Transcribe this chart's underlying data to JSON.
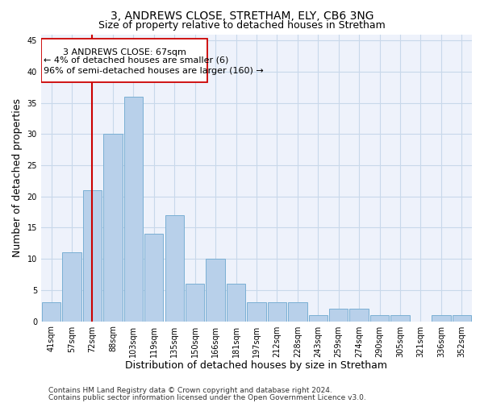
{
  "title_line1": "3, ANDREWS CLOSE, STRETHAM, ELY, CB6 3NG",
  "title_line2": "Size of property relative to detached houses in Stretham",
  "xlabel": "Distribution of detached houses by size in Stretham",
  "ylabel": "Number of detached properties",
  "categories": [
    "41sqm",
    "57sqm",
    "72sqm",
    "88sqm",
    "103sqm",
    "119sqm",
    "135sqm",
    "150sqm",
    "166sqm",
    "181sqm",
    "197sqm",
    "212sqm",
    "228sqm",
    "243sqm",
    "259sqm",
    "274sqm",
    "290sqm",
    "305sqm",
    "321sqm",
    "336sqm",
    "352sqm"
  ],
  "values": [
    3,
    11,
    21,
    30,
    36,
    14,
    17,
    6,
    10,
    6,
    3,
    3,
    3,
    1,
    2,
    2,
    1,
    1,
    0,
    1,
    1
  ],
  "bar_color": "#b8d0ea",
  "bar_edge_color": "#7aafd4",
  "reference_line_x": 2.0,
  "reference_line_color": "#cc0000",
  "annotation_line1": "3 ANDREWS CLOSE: 67sqm",
  "annotation_line2": "← 4% of detached houses are smaller (6)",
  "annotation_line3": "96% of semi-detached houses are larger (160) →",
  "annotation_box_color": "#cc0000",
  "ylim": [
    0,
    46
  ],
  "yticks": [
    0,
    5,
    10,
    15,
    20,
    25,
    30,
    35,
    40,
    45
  ],
  "grid_color": "#c8d8ea",
  "background_color": "#eef2fb",
  "footer_line1": "Contains HM Land Registry data © Crown copyright and database right 2024.",
  "footer_line2": "Contains public sector information licensed under the Open Government Licence v3.0.",
  "title_fontsize": 10,
  "subtitle_fontsize": 9,
  "axis_label_fontsize": 9,
  "tick_fontsize": 7,
  "annotation_fontsize": 8,
  "footer_fontsize": 6.5
}
